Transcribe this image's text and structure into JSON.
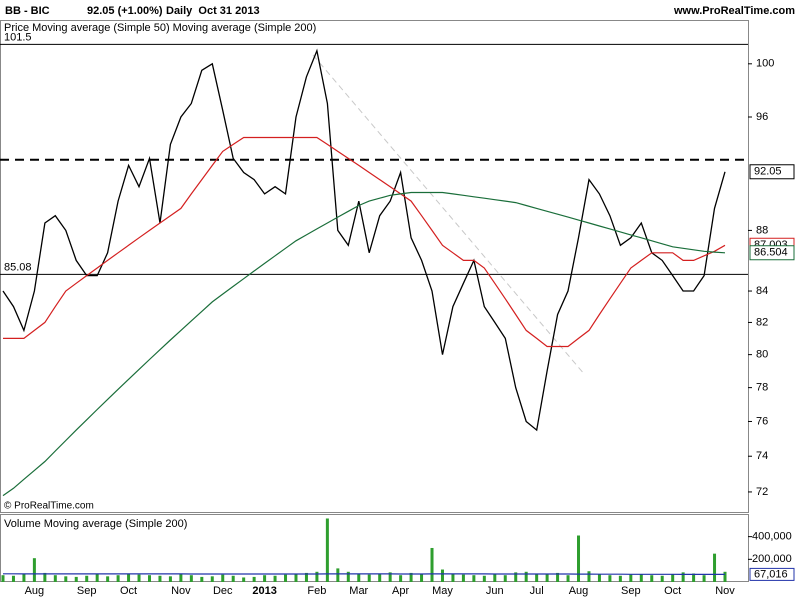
{
  "chart_data": [
    {
      "type": "line",
      "title": "BB - BIC",
      "subtitle": "92.05 (+1.00%)",
      "date_label": "Daily  Oct 31 2013",
      "source": "www.ProRealTime.com",
      "copyright": "© ProRealTime.com",
      "categories": [
        null,
        null,
        null,
        "Aug",
        null,
        null,
        null,
        null,
        "Sep",
        null,
        null,
        null,
        "Oct",
        null,
        null,
        null,
        null,
        "Nov",
        null,
        null,
        null,
        "Dec",
        null,
        null,
        null,
        "2013",
        null,
        null,
        null,
        null,
        "Feb",
        null,
        null,
        null,
        "Mar",
        null,
        null,
        null,
        "Apr",
        null,
        null,
        null,
        "May",
        null,
        null,
        null,
        null,
        "Jun",
        null,
        null,
        null,
        "Jul",
        null,
        null,
        null,
        "Aug",
        null,
        null,
        null,
        null,
        "Sep",
        null,
        null,
        null,
        "Oct",
        null,
        null,
        null,
        null,
        "Nov"
      ],
      "series": [
        {
          "name": "Price",
          "color": "#000000",
          "values": [
            84,
            83,
            81.5,
            84,
            88.5,
            89,
            88,
            86,
            85,
            85,
            86.5,
            90,
            92.5,
            91,
            93,
            88.5,
            94,
            96,
            97,
            99.5,
            100,
            96.5,
            93,
            92,
            91.5,
            90.5,
            91,
            90.5,
            96,
            99,
            101,
            97,
            88,
            87,
            90,
            86.5,
            89,
            90,
            92,
            87.5,
            86,
            84,
            80,
            83,
            84.5,
            86,
            83,
            82,
            81,
            78,
            76,
            75.5,
            79,
            82.5,
            84,
            87.5,
            91.5,
            90.5,
            89,
            87,
            87.5,
            88.5,
            86.5,
            86,
            85,
            84,
            84,
            85,
            89.5,
            92.05
          ]
        },
        {
          "name": "Moving average (Simple 50)",
          "color": "#d42020",
          "values": [
            81,
            81,
            81,
            81.5,
            82,
            83,
            84,
            84.5,
            85,
            85.5,
            86,
            86.5,
            87,
            87.5,
            88,
            88.5,
            89,
            89.5,
            90.5,
            91.5,
            92.5,
            93.5,
            94,
            94.5,
            94.5,
            94.5,
            94.5,
            94.5,
            94.5,
            94.5,
            94.5,
            94,
            93.5,
            93,
            92.5,
            92,
            91.5,
            91,
            90.5,
            90,
            89,
            88,
            87,
            86.5,
            86,
            86,
            85.5,
            84.5,
            83.5,
            82.5,
            81.5,
            81,
            80.5,
            80.5,
            80.5,
            81,
            81.5,
            82.5,
            83.5,
            84.5,
            85.5,
            86,
            86.5,
            86.5,
            86.5,
            86,
            86,
            86.3,
            86.6,
            87.003
          ]
        },
        {
          "name": "Moving average (Simple 200)",
          "color": "#1a6e3a",
          "values": [
            71.8,
            72.2,
            72.7,
            73.2,
            73.7,
            74.3,
            74.9,
            75.5,
            76.1,
            76.7,
            77.3,
            77.9,
            78.5,
            79.1,
            79.7,
            80.3,
            80.9,
            81.5,
            82.1,
            82.7,
            83.3,
            83.8,
            84.3,
            84.8,
            85.3,
            85.8,
            86.3,
            86.8,
            87.3,
            87.7,
            88.1,
            88.5,
            88.9,
            89.3,
            89.7,
            90,
            90.2,
            90.4,
            90.5,
            90.6,
            90.6,
            90.6,
            90.6,
            90.5,
            90.4,
            90.3,
            90.2,
            90.1,
            90,
            89.9,
            89.7,
            89.5,
            89.3,
            89.1,
            88.9,
            88.7,
            88.5,
            88.3,
            88.1,
            87.9,
            87.7,
            87.5,
            87.3,
            87.1,
            86.9,
            86.8,
            86.7,
            86.6,
            86.55,
            86.504
          ]
        }
      ],
      "ylim": [
        70.9,
        102
      ],
      "log_scale": true,
      "yticks": [
        72,
        74,
        76,
        78,
        80,
        82,
        84,
        88,
        96,
        100
      ],
      "reference_lines": [
        {
          "value": 101.5,
          "style": "solid",
          "show_label": true
        },
        {
          "value": 85.08,
          "style": "solid",
          "show_label": true
        },
        {
          "value": 92.9,
          "style": "dashed",
          "show_label": false
        }
      ]
    },
    {
      "type": "bar",
      "series": [
        {
          "name": "Volume",
          "color": "#2e9e2e",
          "values": [
            60000,
            55000,
            70000,
            210000,
            80000,
            60000,
            50000,
            45000,
            55000,
            70000,
            50000,
            60000,
            75000,
            65000,
            60000,
            55000,
            50000,
            70000,
            60000,
            45000,
            50000,
            65000,
            55000,
            40000,
            45000,
            60000,
            55000,
            65000,
            70000,
            80000,
            90000,
            560000,
            120000,
            90000,
            75000,
            65000,
            70000,
            85000,
            60000,
            80000,
            75000,
            300000,
            110000,
            75000,
            65000,
            60000,
            55000,
            70000,
            60000,
            85000,
            90000,
            75000,
            70000,
            80000,
            60000,
            410000,
            95000,
            70000,
            60000,
            55000,
            65000,
            70000,
            60000,
            55000,
            70000,
            85000,
            75000,
            60000,
            250000,
            90000
          ]
        },
        {
          "name": "Moving average (Simple 200)",
          "color": "#2233aa",
          "values": [
            72000,
            72000,
            71800,
            71800,
            71600,
            71600,
            71500,
            71500,
            71400,
            71400,
            71300,
            71300,
            71200,
            71200,
            71100,
            71100,
            71000,
            71000,
            70900,
            70900,
            70800,
            70800,
            70700,
            70700,
            70600,
            70600,
            70500,
            70500,
            70400,
            70400,
            70300,
            71500,
            71500,
            71400,
            71300,
            71200,
            71100,
            71000,
            70900,
            70800,
            70700,
            71400,
            71400,
            71300,
            71200,
            71100,
            71000,
            70900,
            70800,
            70700,
            70600,
            70500,
            70400,
            70300,
            70200,
            70000,
            69500,
            69200,
            68900,
            68600,
            68300,
            68100,
            67900,
            67700,
            67500,
            67400,
            67300,
            67200,
            67100,
            67016
          ],
          "value_labels": [
            null,
            null,
            null,
            null,
            null,
            null,
            null,
            null,
            null,
            null,
            null,
            null,
            null,
            null,
            null,
            null,
            null,
            null,
            null,
            null,
            null,
            null,
            null,
            null,
            null,
            null,
            null,
            null,
            null,
            null,
            null,
            null,
            null,
            null,
            null,
            null,
            null,
            null,
            null,
            null,
            null,
            null,
            null,
            null,
            null,
            null,
            null,
            null,
            null,
            null,
            null,
            null,
            null,
            null,
            null,
            null,
            null,
            null,
            null,
            null,
            null,
            null,
            null,
            null,
            null,
            null,
            null,
            null,
            null,
            "67,016"
          ]
        }
      ],
      "ylim": [
        0,
        582000
      ],
      "yticks": [
        {
          "value": 200000,
          "label": "200,000"
        },
        {
          "value": 400000,
          "label": "400,000"
        }
      ]
    }
  ]
}
